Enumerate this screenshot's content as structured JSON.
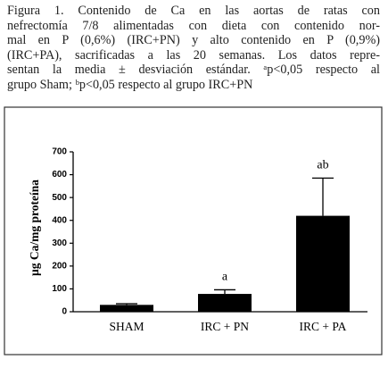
{
  "caption_lines": [
    "Figura 1. Contenido de Ca en las aortas de ratas con",
    "nefrectomía 7/8 alimentadas con dieta con contenido nor-",
    "mal en P (0,6%) (IRC+PN) y alto contenido en P (0,9%)",
    "(IRC+PA), sacrificadas a las 20 semanas. Los datos repre-",
    "sentan la media ± desviación estándar. ᵃp<0,05 respecto al",
    "grupo Sham; ᵇp<0,05 respecto al grupo IRC+PN"
  ],
  "chart_data": {
    "type": "bar",
    "ylabel": "µg Ca/mg proteína",
    "categories": [
      "SHAM",
      "IRC + PN",
      "IRC + PA"
    ],
    "values": [
      30,
      78,
      420
    ],
    "errors": [
      5,
      18,
      165
    ],
    "annotations": [
      null,
      "a",
      "ab"
    ],
    "color": "#000000",
    "ylim": [
      0,
      700
    ],
    "yticks": [
      0,
      100,
      200,
      300,
      400,
      500,
      600,
      700
    ]
  }
}
